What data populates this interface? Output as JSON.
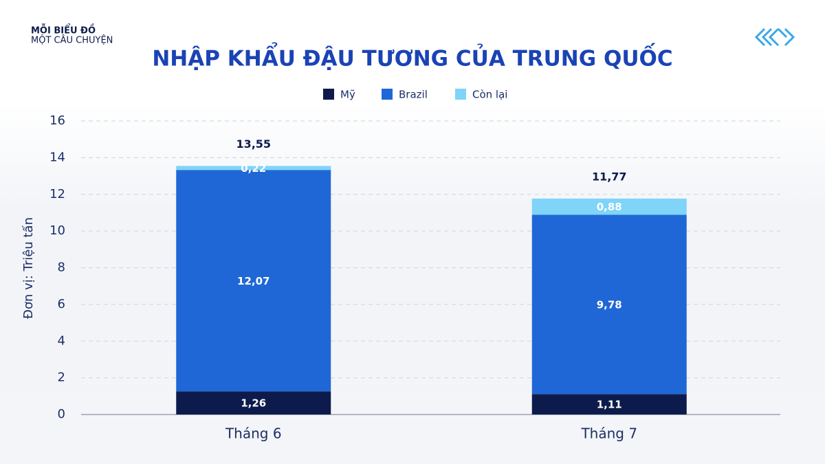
{
  "brand": [
    "MỖI BIỂU ĐỒ",
    "MỘT CÂU CHUYỆN"
  ],
  "chart_data": {
    "type": "stacked_bar",
    "title": "NHẬP KHẨU ĐẬU TƯƠNG CỦA TRUNG QUỐC",
    "y_label": "Đơn vị: Triệu tấn",
    "categories": [
      "Tháng 6",
      "Tháng 7"
    ],
    "series": [
      {
        "name": "Mỹ",
        "color": "#0d1b4c",
        "values": [
          1.26,
          1.11
        ],
        "value_labels": [
          "1,26",
          "1,11"
        ]
      },
      {
        "name": "Brazil",
        "color": "#1f67d6",
        "values": [
          12.07,
          9.78
        ],
        "value_labels": [
          "12,07",
          "9,78"
        ]
      },
      {
        "name": "Còn lại",
        "color": "#7fd4f8",
        "values": [
          0.22,
          0.88
        ],
        "value_labels": [
          "0,22",
          "0,88"
        ]
      }
    ],
    "totals": {
      "values": [
        13.55,
        11.77
      ],
      "value_labels": [
        "13,55",
        "11,77"
      ]
    },
    "ylim": [
      0,
      16
    ],
    "yticks": [
      0,
      2,
      4,
      6,
      8,
      10,
      12,
      14,
      16
    ],
    "grid": true,
    "legend": "top"
  }
}
